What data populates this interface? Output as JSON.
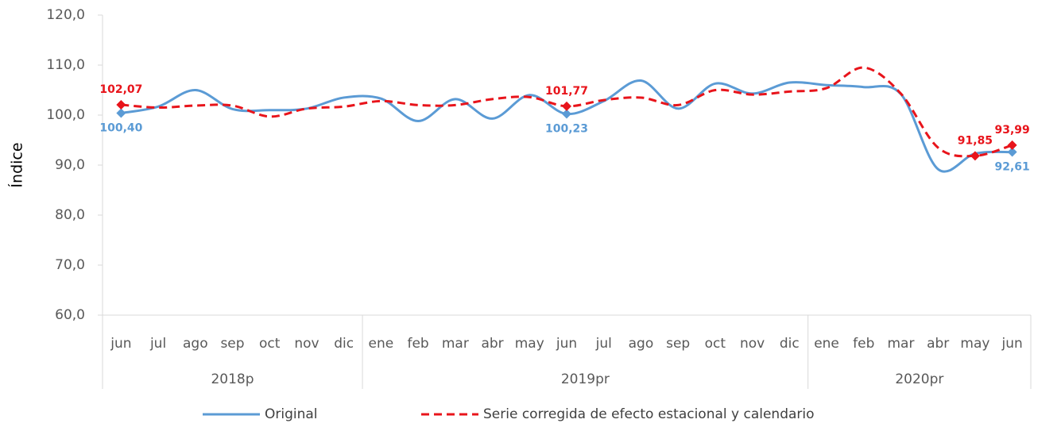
{
  "chart_data": {
    "type": "line",
    "y_label": "Índice",
    "groups": [
      {
        "label": "2018p",
        "categories": [
          "jun",
          "jul",
          "ago",
          "sep",
          "oct",
          "nov",
          "dic"
        ]
      },
      {
        "label": "2019pr",
        "categories": [
          "ene",
          "feb",
          "mar",
          "abr",
          "may",
          "jun",
          "jul",
          "ago",
          "sep",
          "oct",
          "nov",
          "dic"
        ]
      },
      {
        "label": "2020pr",
        "categories": [
          "ene",
          "feb",
          "mar",
          "abr",
          "may",
          "jun"
        ]
      }
    ],
    "series": [
      {
        "name": "Original",
        "color": "#5b9bd5",
        "dash": false,
        "values": [
          100.4,
          101.7,
          105.0,
          101.2,
          101.0,
          101.3,
          103.5,
          103.3,
          98.8,
          103.2,
          99.3,
          104.0,
          100.23,
          102.8,
          106.9,
          101.3,
          106.3,
          104.3,
          106.5,
          106.0,
          105.6,
          104.2,
          89.2,
          92.3,
          92.61
        ],
        "value_labels": [
          "100,40",
          null,
          null,
          null,
          null,
          null,
          null,
          null,
          null,
          null,
          null,
          null,
          "100,23",
          null,
          null,
          null,
          null,
          null,
          null,
          null,
          null,
          null,
          null,
          null,
          "92,61"
        ]
      },
      {
        "name": "Serie corregida de efecto estacional y calendario",
        "color": "#e8141b",
        "dash": true,
        "values": [
          102.07,
          101.5,
          101.9,
          101.9,
          99.7,
          101.3,
          101.7,
          102.8,
          102.0,
          102.0,
          103.2,
          103.6,
          101.77,
          103.0,
          103.5,
          102.0,
          105.0,
          104.1,
          104.7,
          105.4,
          109.5,
          104.3,
          93.5,
          91.85,
          93.99
        ],
        "value_labels": [
          "102,07",
          null,
          null,
          null,
          null,
          null,
          null,
          null,
          null,
          null,
          null,
          null,
          "101,77",
          null,
          null,
          null,
          null,
          null,
          null,
          null,
          null,
          null,
          null,
          "91,85",
          "93,99"
        ]
      }
    ],
    "ylim": [
      60,
      120
    ],
    "yticks": [
      {
        "value": 60,
        "label": "60,0"
      },
      {
        "value": 70,
        "label": "70,0"
      },
      {
        "value": 80,
        "label": "80,0"
      },
      {
        "value": 90,
        "label": "90,0"
      },
      {
        "value": 100,
        "label": "100,0"
      },
      {
        "value": 110,
        "label": "110,0"
      },
      {
        "value": 120,
        "label": "120,0"
      }
    ],
    "legend": "bottom"
  }
}
